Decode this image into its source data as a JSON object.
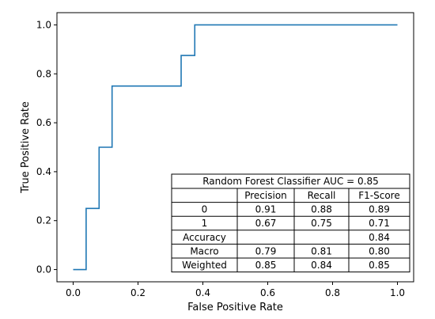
{
  "chart_data": {
    "type": "line",
    "xlabel": "False Positive Rate",
    "ylabel": "True Positive Rate",
    "xlim": [
      -0.05,
      1.05
    ],
    "ylim": [
      -0.05,
      1.05
    ],
    "x_ticks": [
      "0.0",
      "0.2",
      "0.4",
      "0.6",
      "0.8",
      "1.0"
    ],
    "y_ticks": [
      "0.0",
      "0.2",
      "0.4",
      "0.6",
      "0.8",
      "1.0"
    ],
    "grid": false,
    "series": [
      {
        "color": "#1f77b4",
        "x": [
          0.0,
          0.04,
          0.04,
          0.08,
          0.08,
          0.12,
          0.12,
          0.333,
          0.333,
          0.375,
          0.375,
          1.0
        ],
        "y": [
          0.0,
          0.0,
          0.25,
          0.25,
          0.5,
          0.5,
          0.75,
          0.75,
          0.875,
          0.875,
          1.0,
          1.0
        ]
      }
    ],
    "table": {
      "title": "Random Forest Classifier AUC = 0.85",
      "columns": [
        "",
        "Precision",
        "Recall",
        "F1-Score"
      ],
      "rows": [
        [
          "0",
          "0.91",
          "0.88",
          "0.89"
        ],
        [
          "1",
          "0.67",
          "0.75",
          "0.71"
        ],
        [
          "Accuracy",
          "",
          "",
          "0.84"
        ],
        [
          "Macro",
          "0.79",
          "0.81",
          "0.80"
        ],
        [
          "Weighted",
          "0.85",
          "0.84",
          "0.85"
        ]
      ]
    }
  }
}
